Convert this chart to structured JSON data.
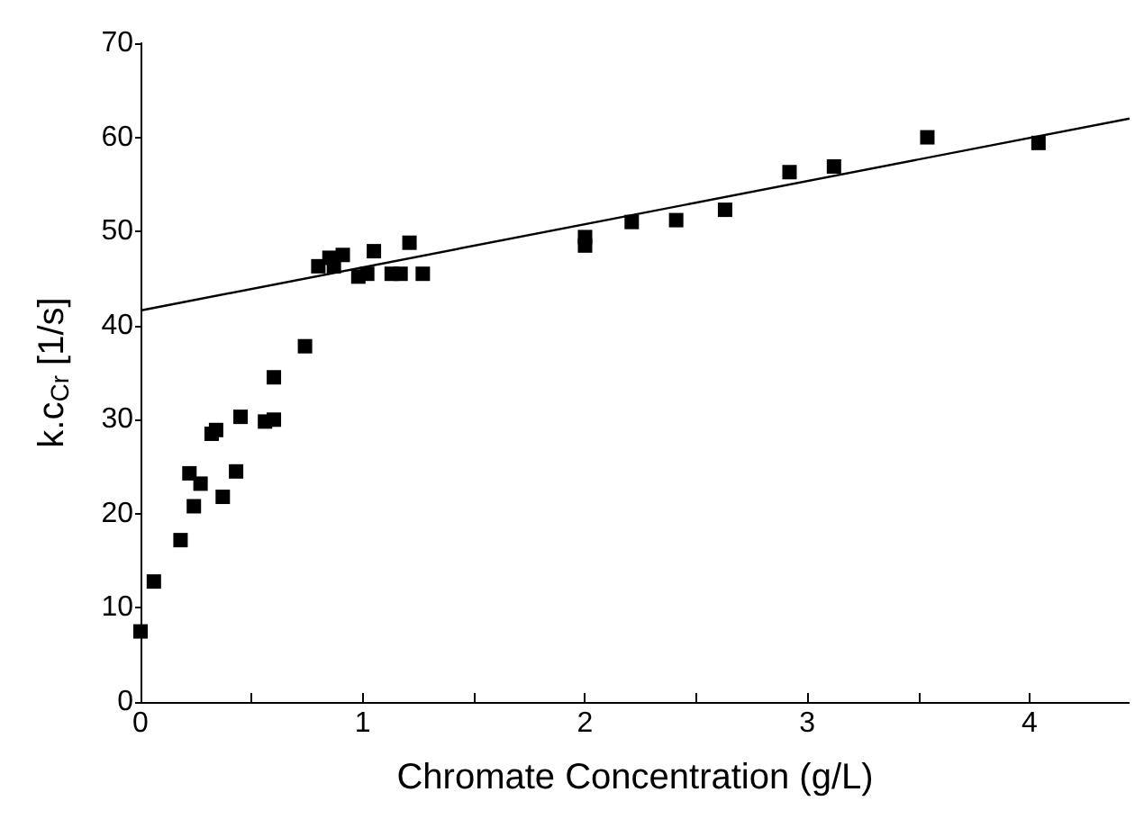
{
  "chart_data": {
    "type": "scatter",
    "xlabel": "Chromate Concentration (g/L)",
    "ylabel": "k.c$_{Cr}$ [1/s]",
    "xlim": [
      0,
      4.45
    ],
    "xticks": [
      0,
      {
        "value": 0.5,
        "label": null
      },
      1,
      {
        "value": 1.5,
        "label": null
      },
      2,
      {
        "value": 2.5,
        "label": null
      },
      3,
      {
        "value": 3.5,
        "label": null
      },
      4
    ],
    "ylim": [
      0,
      70
    ],
    "yticks": [
      0,
      10,
      20,
      30,
      40,
      50,
      60,
      70
    ],
    "grid": false,
    "series": [
      {
        "color": "#000000",
        "marker": "square",
        "x": [
          0,
          0.06,
          0.18,
          0.22,
          0.24,
          0.27,
          0.32,
          0.34,
          0.37,
          0.43,
          0.45,
          0.56,
          0.6,
          0.6,
          0.74,
          0.8,
          0.85,
          0.87,
          0.91,
          0.98,
          1.02,
          1.05,
          1.13,
          1.17,
          1.21,
          1.27,
          2.0,
          2.0,
          2.21,
          2.41,
          2.63,
          2.92,
          3.12,
          3.54,
          4.04
        ],
        "values": [
          7.5,
          12.8,
          17.2,
          24.3,
          20.8,
          23.2,
          28.5,
          28.9,
          21.8,
          24.5,
          30.3,
          29.8,
          30.0,
          34.5,
          37.8,
          46.3,
          47.2,
          46.3,
          47.5,
          45.2,
          45.5,
          47.9,
          45.5,
          45.5,
          48.8,
          45.5,
          48.5,
          49.4,
          51.0,
          51.2,
          52.3,
          56.3,
          56.9,
          60.0,
          59.4
        ]
      },
      {
        "type": "line",
        "color": "#000000",
        "marker": "none",
        "line_style": "solid",
        "x": [
          0,
          4.45
        ],
        "values": [
          41.6,
          62.0
        ]
      }
    ]
  }
}
